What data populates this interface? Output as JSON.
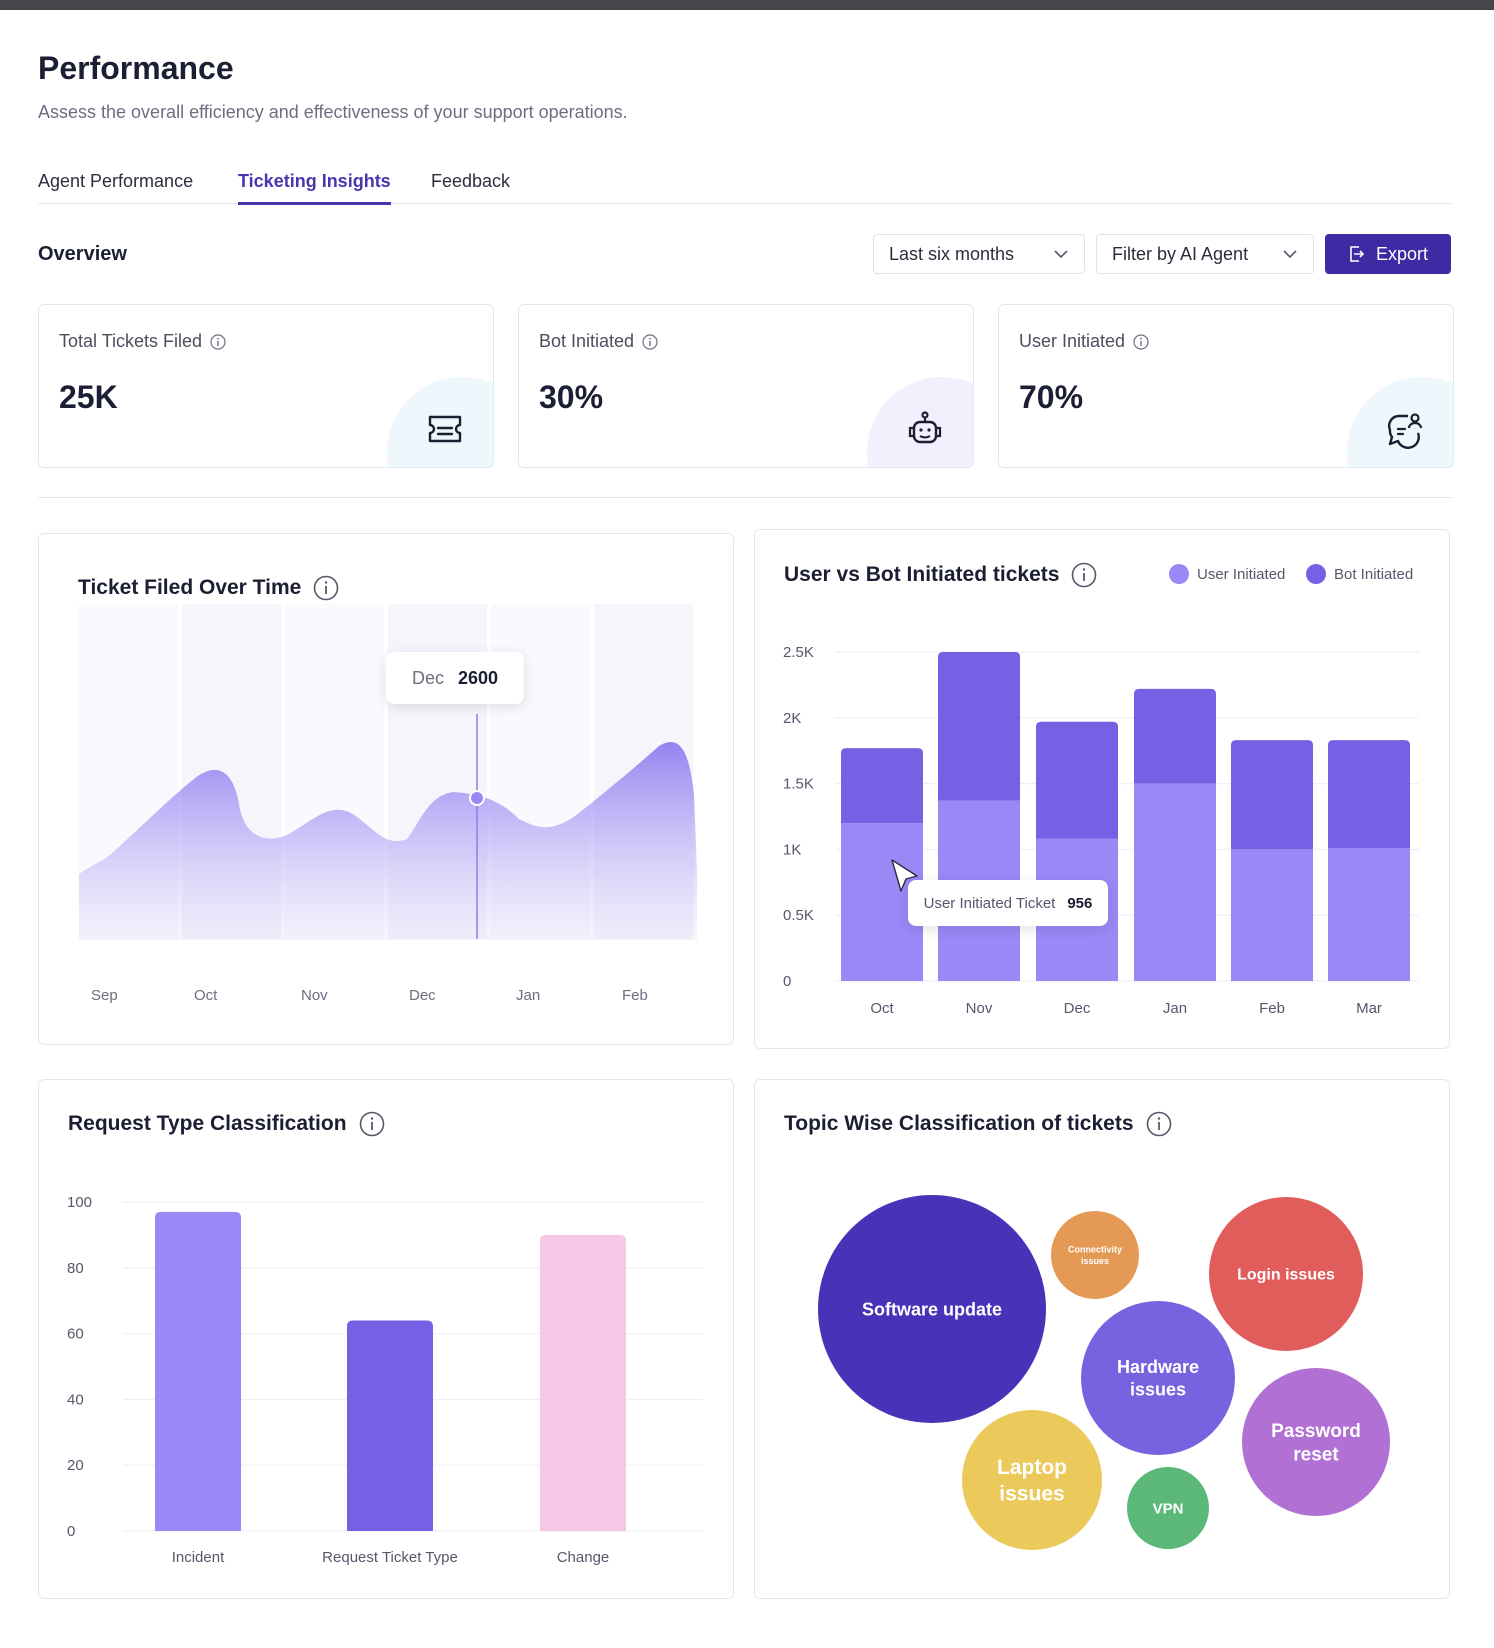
{
  "page": {
    "title": "Performance",
    "subtitle": "Assess the overall efficiency and effectiveness of your support operations."
  },
  "tabs": [
    {
      "label": "Agent Performance",
      "active": false
    },
    {
      "label": "Ticketing Insights",
      "active": true
    },
    {
      "label": "Feedback",
      "active": false
    }
  ],
  "overview": {
    "title": "Overview",
    "period_select": "Last six months",
    "agent_filter": "Filter by AI Agent",
    "export_label": "Export"
  },
  "kpis": [
    {
      "label": "Total Tickets Filed",
      "value": "25K",
      "icon": "ticket-icon",
      "tint": "#eef7fb"
    },
    {
      "label": "Bot Initiated",
      "value": "30%",
      "icon": "robot-icon",
      "tint": "#f3effd"
    },
    {
      "label": "User Initiated",
      "value": "70%",
      "icon": "user-chat-icon",
      "tint": "#eef7fb"
    }
  ],
  "colors": {
    "accent": "#3d2ba3",
    "tab_active": "#4a35b0",
    "user_initiated": "#9b87f5",
    "bot_initiated": "#7660e3",
    "incident": "#9b87f5",
    "request": "#7660e3",
    "change": "#f6c8e5"
  },
  "charts": {
    "ticket_over_time": {
      "title": "Ticket Filed Over Time",
      "tooltip": {
        "label": "Dec",
        "value": "2600"
      },
      "chart_data": {
        "type": "area",
        "categories": [
          "Sep",
          "Oct",
          "Nov",
          "Dec",
          "Jan",
          "Feb"
        ],
        "tooltip_point": {
          "x": "Dec",
          "y": 2600
        }
      }
    },
    "user_vs_bot": {
      "title": "User vs Bot Initiated tickets",
      "legend": [
        "User Initiated",
        "Bot Initiated"
      ],
      "tooltip": {
        "label": "User Initiated Ticket",
        "value": "956"
      },
      "yticks": [
        "0",
        "0.5K",
        "1K",
        "1.5K",
        "2K",
        "2.5K"
      ],
      "chart_data": {
        "type": "bar",
        "stacked": true,
        "categories": [
          "Oct",
          "Nov",
          "Dec",
          "Jan",
          "Feb",
          "Mar"
        ],
        "series": [
          {
            "name": "User Initiated",
            "values": [
              1200,
              1370,
              1080,
              1500,
              1000,
              1010
            ]
          },
          {
            "name": "Bot Initiated",
            "values": [
              570,
              1130,
              890,
              720,
              830,
              820
            ]
          }
        ],
        "ylim": [
          0,
          2500
        ]
      }
    },
    "request_type": {
      "title": "Request Type Classification",
      "yticks": [
        "0",
        "20",
        "40",
        "60",
        "80",
        "100"
      ],
      "chart_data": {
        "type": "bar",
        "categories": [
          "Incident",
          "Request Ticket Type",
          "Change"
        ],
        "values": [
          97,
          64,
          90
        ],
        "ylim": [
          0,
          100
        ]
      }
    },
    "topic_wise": {
      "title": "Topic Wise Classification of tickets",
      "bubbles": [
        {
          "label": "Software update",
          "color": "#4a32b8"
        },
        {
          "label": "Connectivity issues",
          "color": "#e49a55"
        },
        {
          "label": "Login issues",
          "color": "#e05d5b"
        },
        {
          "label": "Hardware issues",
          "color": "#7763e0"
        },
        {
          "label": "Password reset",
          "color": "#b070d4"
        },
        {
          "label": "Laptop issues",
          "color": "#ebc95a"
        },
        {
          "label": "VPN",
          "color": "#5bb878"
        }
      ]
    }
  }
}
